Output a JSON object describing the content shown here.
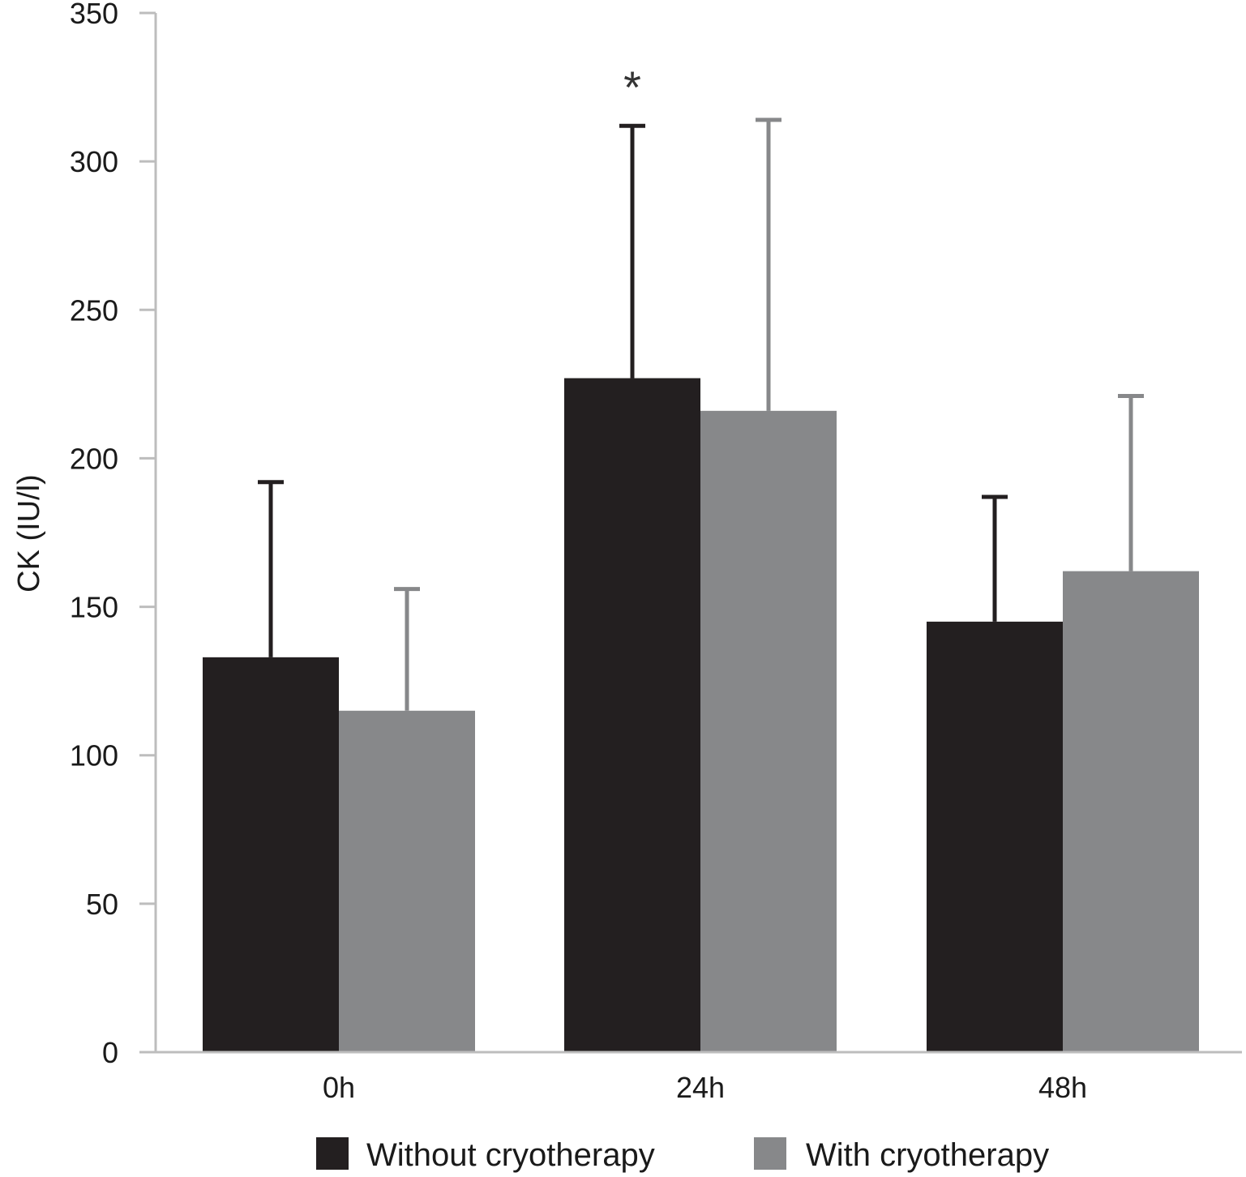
{
  "chart_data": {
    "type": "bar",
    "title": "",
    "xlabel": "",
    "ylabel": "CK (IU/l)",
    "ylim": [
      0,
      350
    ],
    "yticks": [
      0,
      50,
      100,
      150,
      200,
      250,
      300,
      350
    ],
    "categories": [
      "0h",
      "24h",
      "48h"
    ],
    "series": [
      {
        "name": "Without cryotherapy",
        "color": "#231f20",
        "values": [
          133,
          227,
          145
        ],
        "error_upper": [
          192,
          312,
          187
        ]
      },
      {
        "name": "With cryotherapy",
        "color": "#87888a",
        "values": [
          115,
          216,
          162
        ],
        "error_upper": [
          156,
          314,
          221
        ]
      }
    ],
    "annotations": [
      {
        "text": "*",
        "category": "24h",
        "series": "Without cryotherapy"
      }
    ],
    "grid": false,
    "legend_position": "bottom"
  }
}
